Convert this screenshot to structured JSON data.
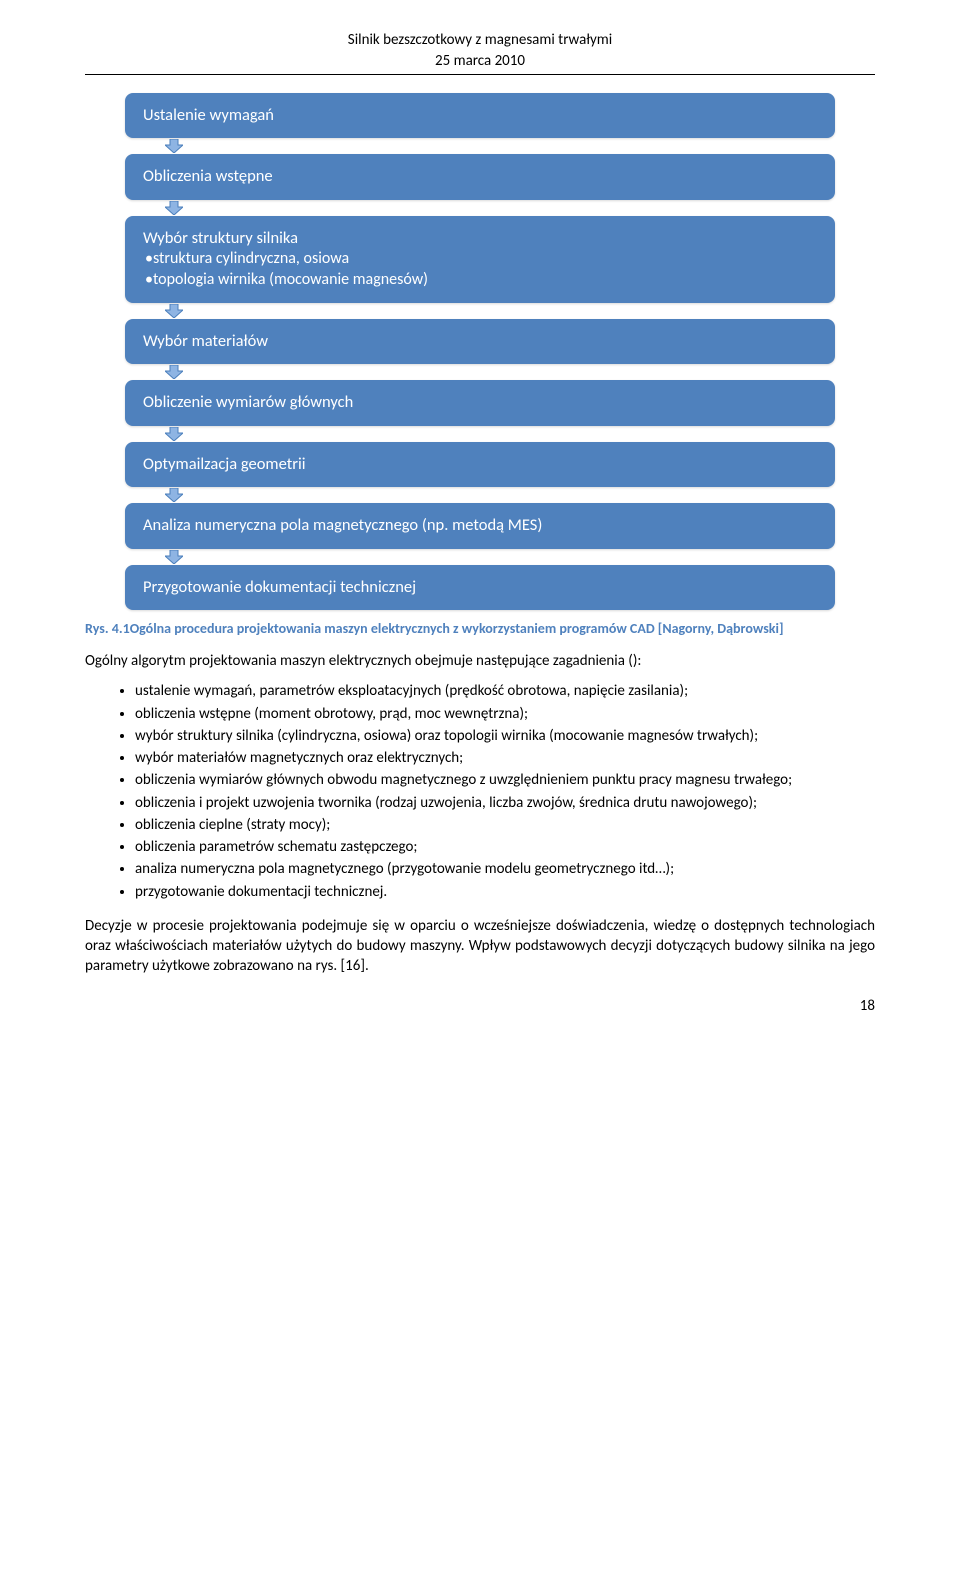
{
  "header": {
    "title": "Silnik bezszczotkowy z magnesami trwałymi",
    "date": "25 marca 2010"
  },
  "flow": {
    "box_bg": "#4f81bd",
    "box_fg": "#ffffff",
    "arrow_fill": "#8eb4e3",
    "arrow_stroke": "#4a7ebb",
    "boxes": [
      {
        "main": "Ustalenie wymagań",
        "subs": []
      },
      {
        "main": "Obliczenia wstępne",
        "subs": []
      },
      {
        "main": "Wybór struktury silnika",
        "subs": [
          "•struktura cylindryczna, osiowa",
          "•topologia wirnika (mocowanie magnesów)"
        ]
      },
      {
        "main": "Wybór materiałów",
        "subs": []
      },
      {
        "main": "Obliczenie wymiarów głównych",
        "subs": []
      },
      {
        "main": "Optymailzacja geometrii",
        "subs": []
      },
      {
        "main": "Analiza numeryczna pola magnetycznego (np. metodą MES)",
        "subs": []
      },
      {
        "main": "Przygotowanie dokumentacji technicznej",
        "subs": []
      }
    ]
  },
  "caption": "Rys. 4.1Ogólna procedura projektowania maszyn elektrycznych z wykorzystaniem programów CAD [Nagorny, Dąbrowski]",
  "intro": "Ogólny algorytm projektowania maszyn elektrycznych obejmuje następujące zagadnienia ():",
  "bullets": [
    "ustalenie wymagań, parametrów eksploatacyjnych (prędkość obrotowa, napięcie zasilania);",
    "obliczenia wstępne (moment obrotowy, prąd, moc wewnętrzna);",
    "wybór struktury silnika (cylindryczna, osiowa) oraz topologii wirnika (mocowanie magnesów trwałych);",
    "wybór materiałów magnetycznych oraz elektrycznych;",
    "obliczenia wymiarów głównych obwodu magnetycznego z uwzględnieniem punktu pracy magnesu trwałego;",
    "obliczenia i projekt uzwojenia twornika (rodzaj uzwojenia, liczba zwojów, średnica drutu nawojowego);",
    "obliczenia cieplne (straty mocy);",
    "obliczenia parametrów schematu zastępczego;",
    "analiza numeryczna pola magnetycznego (przygotowanie modelu geometrycznego itd…);",
    "przygotowanie dokumentacji technicznej."
  ],
  "closing": "Decyzje w procesie projektowania podejmuje się w oparciu o wcześniejsze doświadczenia,  wiedzę o dostępnych technologiach oraz właściwościach materiałów użytych do budowy maszyny. Wpływ podstawowych decyzji dotyczących budowy silnika na jego parametry użytkowe zobrazowano na rys. [16].",
  "page_number": "18"
}
